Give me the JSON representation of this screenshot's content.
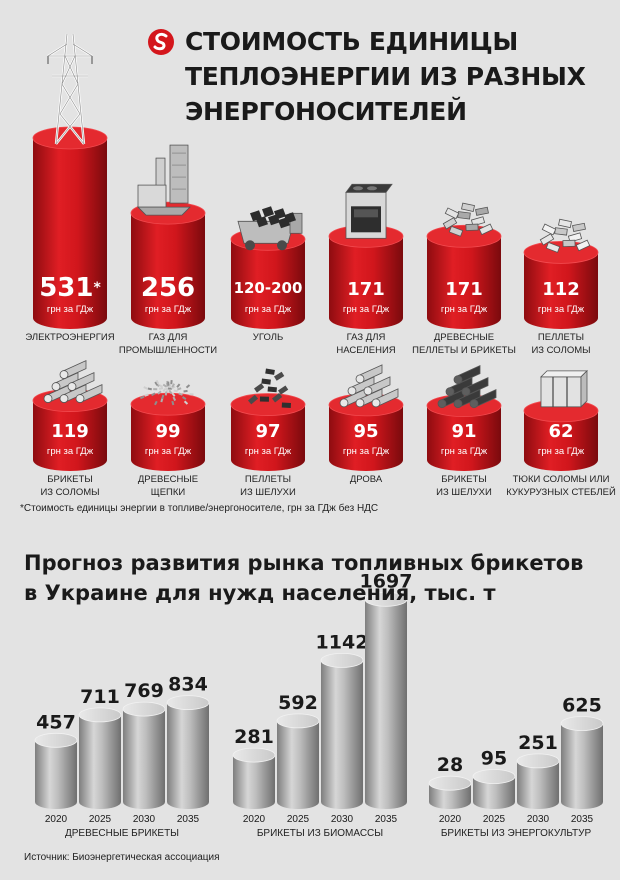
{
  "header": {
    "title_lines": [
      "СТОИМОСТЬ ЕДИНИЦЫ",
      "ТЕПЛОЭНЕРГИИ ИЗ РАЗНЫХ",
      "ЭНЕРГОНОСИТЕЛЕЙ"
    ],
    "accent_color": "#d4161c"
  },
  "cost": {
    "unit": "грн за ГДж",
    "note": "*Стоимость единицы энергии в топливе/энергоносителе, грн за ГДж без НДС",
    "items": [
      {
        "value": "531",
        "mark": "*",
        "label": [
          "ЭЛЕКТРОЭНЕРГИЯ"
        ],
        "icon": "power-pylon-icon"
      },
      {
        "value": "256",
        "label": [
          "ГАЗ ДЛЯ",
          "ПРОМЫШЛЕННОСТИ"
        ],
        "icon": "factory-icon"
      },
      {
        "value": "120-200",
        "label": [
          "УГОЛЬ"
        ],
        "icon": "coal-cart-icon"
      },
      {
        "value": "171",
        "label": [
          "ГАЗ ДЛЯ",
          "НАСЕЛЕНИЯ"
        ],
        "icon": "gas-stove-icon"
      },
      {
        "value": "171",
        "label": [
          "ДРЕВЕСНЫЕ",
          "ПЕЛЛЕТЫ И БРИКЕТЫ"
        ],
        "icon": "wood-pellets-icon"
      },
      {
        "value": "112",
        "label": [
          "ПЕЛЛЕТЫ",
          "ИЗ СОЛОМЫ"
        ],
        "icon": "straw-pellets-icon"
      },
      {
        "value": "119",
        "label": [
          "БРИКЕТЫ",
          "ИЗ СОЛОМЫ"
        ],
        "icon": "straw-briquettes-icon"
      },
      {
        "value": "99",
        "label": [
          "ДРЕВЕСНЫЕ",
          "ЩЕПКИ"
        ],
        "icon": "wood-chips-icon"
      },
      {
        "value": "97",
        "label": [
          "ПЕЛЛЕТЫ",
          "ИЗ ШЕЛУХИ"
        ],
        "icon": "husk-pellets-icon"
      },
      {
        "value": "95",
        "label": [
          "ДРОВА"
        ],
        "icon": "firewood-icon"
      },
      {
        "value": "91",
        "label": [
          "БРИКЕТЫ",
          "ИЗ ШЕЛУХИ"
        ],
        "icon": "husk-briquettes-icon"
      },
      {
        "value": "62",
        "label": [
          "ТЮКИ СОЛОМЫ ИЛИ",
          "КУКУРУЗНЫХ СТЕБЛЕЙ"
        ],
        "icon": "straw-bale-icon"
      }
    ]
  },
  "forecast": {
    "title_lines": [
      "Прогноз развития рынка топливных брикетов",
      "в Украине для нужд населения, тыс. т"
    ],
    "source": "Источник: Биоэнергетическая ассоциация"
  },
  "chart_data": [
    {
      "type": "bar",
      "title": "СТОИМОСТЬ ЕДИНИЦЫ ТЕПЛОЭНЕРГИИ ИЗ РАЗНЫХ ЭНЕРГОНОСИТЕЛЕЙ",
      "ylabel": "грн за ГДж",
      "categories": [
        "ЭЛЕКТРОЭНЕРГИЯ",
        "ГАЗ ДЛЯ ПРОМЫШЛЕННОСТИ",
        "УГОЛЬ",
        "ГАЗ ДЛЯ НАСЕЛЕНИЯ",
        "ДРЕВЕСНЫЕ ПЕЛЛЕТЫ И БРИКЕТЫ",
        "ПЕЛЛЕТЫ ИЗ СОЛОМЫ",
        "БРИКЕТЫ ИЗ СОЛОМЫ",
        "ДРЕВЕСНЫЕ ЩЕПКИ",
        "ПЕЛЛЕТЫ ИЗ ШЕЛУХИ",
        "ДРОВА",
        "БРИКЕТЫ ИЗ ШЕЛУХИ",
        "ТЮКИ СОЛОМЫ ИЛИ КУКУРУЗНЫХ СТЕБЛЕЙ"
      ],
      "values": [
        531,
        256,
        160,
        171,
        171,
        112,
        119,
        99,
        97,
        95,
        91,
        62
      ],
      "value_ranges": {
        "УГОЛЬ": [
          120,
          200
        ]
      }
    },
    {
      "type": "bar",
      "title": "Прогноз развития рынка топливных брикетов в Украине для нужд населения, тыс. т",
      "categories": [
        "2020",
        "2025",
        "2030",
        "2035"
      ],
      "series": [
        {
          "name": "ДРЕВЕСНЫЕ БРИКЕТЫ",
          "values": [
            457,
            711,
            769,
            834
          ]
        },
        {
          "name": "БРИКЕТЫ ИЗ БИОМАССЫ",
          "values": [
            281,
            592,
            1142,
            1697
          ]
        },
        {
          "name": "БРИКЕТЫ ИЗ ЭНЕРГОКУЛЬТУР",
          "values": [
            28,
            95,
            251,
            625
          ]
        }
      ],
      "ylim": [
        0,
        1700
      ]
    }
  ]
}
